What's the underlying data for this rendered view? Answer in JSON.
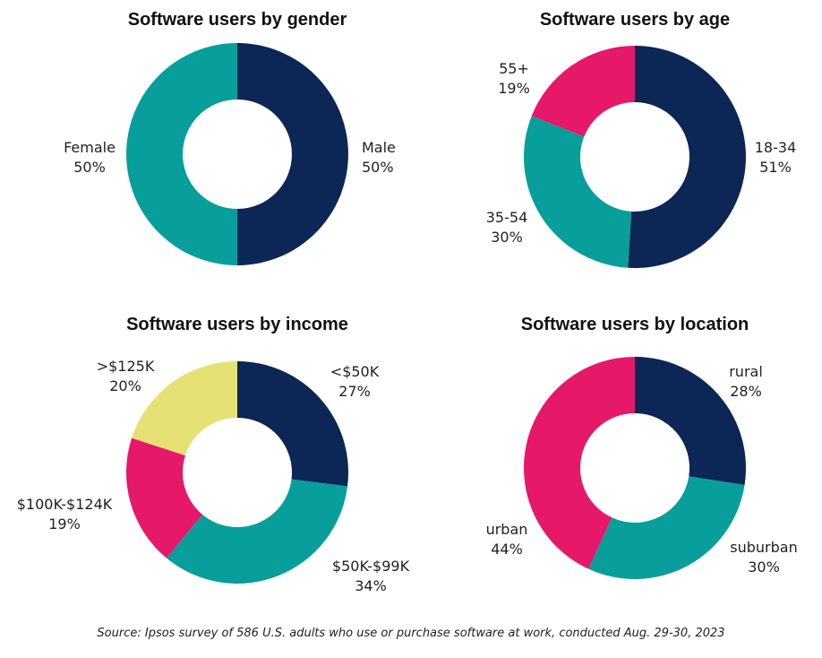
{
  "colors": {
    "navy": "#0c2656",
    "teal": "#079e9b",
    "pink": "#e5186a",
    "yellow": "#e6e175"
  },
  "chart_data": [
    {
      "type": "pie",
      "title": "Software users by gender",
      "slices": [
        {
          "label": "Male",
          "value": 50,
          "text": "50%",
          "color": "#0c2656"
        },
        {
          "label": "Female",
          "value": 50,
          "text": "50%",
          "color": "#079e9b"
        }
      ]
    },
    {
      "type": "pie",
      "title": "Software users by age",
      "slices": [
        {
          "label": "18-34",
          "value": 51,
          "text": "51%",
          "color": "#0c2656"
        },
        {
          "label": "35-54",
          "value": 30,
          "text": "30%",
          "color": "#079e9b"
        },
        {
          "label": "55+",
          "value": 19,
          "text": "19%",
          "color": "#e5186a"
        }
      ]
    },
    {
      "type": "pie",
      "title": "Software users by income",
      "slices": [
        {
          "label": "<$50K",
          "value": 27,
          "text": "27%",
          "color": "#0c2656"
        },
        {
          "label": "$50K-$99K",
          "value": 34,
          "text": "34%",
          "color": "#079e9b"
        },
        {
          "label": "$100K-$124K",
          "value": 19,
          "text": "19%",
          "color": "#e5186a"
        },
        {
          "label": ">$125K",
          "value": 20,
          "text": "20%",
          "color": "#e6e175"
        }
      ]
    },
    {
      "type": "pie",
      "title": "Software users by location",
      "slices": [
        {
          "label": "rural",
          "value": 28,
          "text": "28%",
          "color": "#0c2656"
        },
        {
          "label": "suburban",
          "value": 30,
          "text": "30%",
          "color": "#079e9b"
        },
        {
          "label": "urban",
          "value": 44,
          "text": "44%",
          "color": "#e5186a"
        }
      ]
    }
  ],
  "source": "Source: Ipsos survey of 586 U.S. adults who use or purchase software at work, conducted Aug. 29-30, 2023"
}
